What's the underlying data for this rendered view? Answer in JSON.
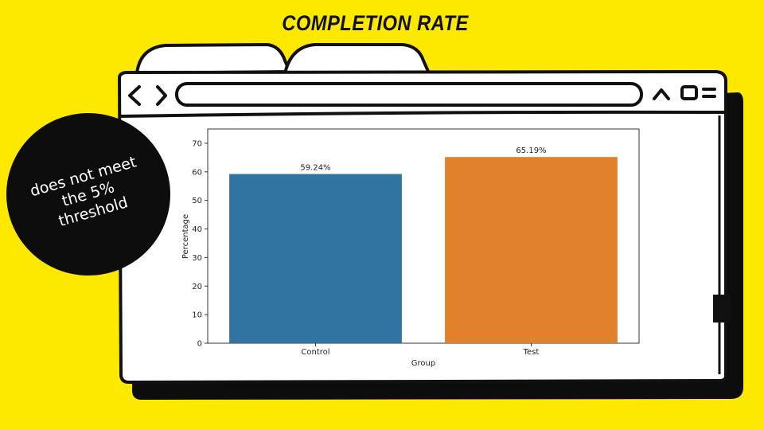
{
  "slide": {
    "title": "COMPLETION RATE",
    "background_color": "#fde800",
    "callout": "does not meet the 5% threshold"
  },
  "browser_frame": {
    "icons": [
      "back-arrow-icon",
      "forward-arrow-icon",
      "chevron-up-icon",
      "square-icon",
      "menu-lines-icon"
    ]
  },
  "chart_data": {
    "type": "bar",
    "categories": [
      "Control",
      "Test"
    ],
    "values": [
      59.24,
      65.19
    ],
    "value_labels": [
      "59.24%",
      "65.19%"
    ],
    "colors": [
      "#3274a1",
      "#e1812c"
    ],
    "xlabel": "Group",
    "ylabel": "Percentage",
    "ylim": [
      0,
      75
    ],
    "yticks": [
      0,
      10,
      20,
      30,
      40,
      50,
      60,
      70
    ],
    "grid": false,
    "legend": "none"
  }
}
